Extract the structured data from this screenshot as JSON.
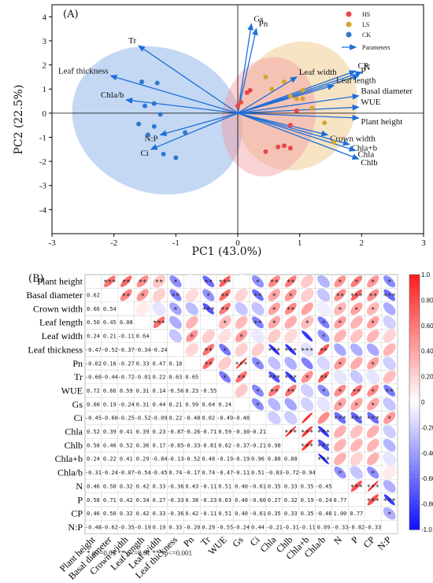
{
  "chart_data": [
    {
      "type": "scatter",
      "panel": "(A)",
      "xlabel": "PC1 (43.0%)",
      "ylabel": "PC2 (22.5%)",
      "xlim": [
        -3,
        3
      ],
      "ylim": [
        -5,
        4.5
      ],
      "xticks": [
        -3,
        -2,
        -1,
        0,
        1,
        2,
        3
      ],
      "yticks": [
        -4,
        -3,
        -2,
        -1,
        0,
        1,
        2,
        3,
        4
      ],
      "grid": false,
      "legend_position": "top-right",
      "series": [
        {
          "name": "HS",
          "color": "#e8474a",
          "points": [
            [
              0.0,
              0.3
            ],
            [
              0.05,
              0.45
            ],
            [
              0.15,
              0.85
            ],
            [
              0.2,
              0.95
            ],
            [
              0.95,
              0.1
            ],
            [
              0.85,
              -0.5
            ],
            [
              0.65,
              -1.4
            ],
            [
              0.75,
              -1.35
            ],
            [
              0.85,
              -1.45
            ],
            [
              0.45,
              -1.6
            ]
          ]
        },
        {
          "name": "LS",
          "color": "#d4a52c",
          "points": [
            [
              0.45,
              1.5
            ],
            [
              0.75,
              1.3
            ],
            [
              0.55,
              1.0
            ],
            [
              0.85,
              0.7
            ],
            [
              0.95,
              0.6
            ],
            [
              1.05,
              0.6
            ],
            [
              1.05,
              0.95
            ],
            [
              1.2,
              0.2
            ],
            [
              1.4,
              -0.4
            ],
            [
              1.55,
              -1.2
            ]
          ]
        },
        {
          "name": "CK",
          "color": "#2f77cf",
          "points": [
            [
              -1.55,
              1.3
            ],
            [
              -1.3,
              1.25
            ],
            [
              -1.5,
              0.3
            ],
            [
              -1.35,
              0.4
            ],
            [
              -1.25,
              -0.05
            ],
            [
              -1.6,
              -0.45
            ],
            [
              -1.45,
              -0.9
            ],
            [
              -0.85,
              -0.8
            ],
            [
              -1.2,
              -1.7
            ],
            [
              -1.0,
              -1.85
            ],
            [
              -1.35,
              -0.55
            ]
          ]
        }
      ],
      "ellipses": [
        {
          "group": "CK",
          "color": "#7ca8e4",
          "cx": -1.3,
          "cy": -0.3,
          "rx": 1.4,
          "ry": 3.0,
          "angle": 20
        },
        {
          "group": "LS",
          "color": "#eec47e",
          "cx": 0.95,
          "cy": 0.3,
          "rx": 0.95,
          "ry": 2.75,
          "angle": 30
        },
        {
          "group": "HS",
          "color": "#f19ca1",
          "cx": 0.5,
          "cy": -0.15,
          "rx": 0.75,
          "ry": 2.5,
          "angle": 12
        }
      ],
      "parameters_legend": "Parameters",
      "vectors": [
        {
          "name": "Gs",
          "x": 0.22,
          "y": 3.7
        },
        {
          "name": "Pn",
          "x": 0.3,
          "y": 3.5
        },
        {
          "name": "Tr",
          "x": -1.6,
          "y": 2.8
        },
        {
          "name": "Leaf thickness",
          "x": -2.05,
          "y": 1.55
        },
        {
          "name": "Chla/b",
          "x": -1.8,
          "y": 0.55
        },
        {
          "name": "N:P",
          "x": -1.25,
          "y": -0.9
        },
        {
          "name": "Ci",
          "x": -1.4,
          "y": -1.5
        },
        {
          "name": "Leaf width",
          "x": 0.95,
          "y": 1.5
        },
        {
          "name": "CP",
          "x": 1.9,
          "y": 1.75
        },
        {
          "name": "N",
          "x": 2.0,
          "y": 1.7
        },
        {
          "name": "P",
          "x": 1.95,
          "y": 1.55
        },
        {
          "name": "Leaf length",
          "x": 1.55,
          "y": 1.15
        },
        {
          "name": "Basal diameter",
          "x": 1.95,
          "y": 0.72
        },
        {
          "name": "WUE",
          "x": 1.95,
          "y": 0.25
        },
        {
          "name": "Plant height",
          "x": 1.95,
          "y": -0.2
        },
        {
          "name": "Crown width",
          "x": 1.45,
          "y": -0.9
        },
        {
          "name": "Chla+b",
          "x": 1.8,
          "y": -1.3
        },
        {
          "name": "Chla",
          "x": 1.9,
          "y": -1.55
        },
        {
          "name": "Chlb",
          "x": 1.95,
          "y": -1.9
        }
      ]
    },
    {
      "type": "heatmap",
      "panel": "(B)",
      "variables": [
        "Plant height",
        "Basal diameter",
        "Crown width",
        "Leaf length",
        "Leaf width",
        "Leaf thickness",
        "Pn",
        "Tr",
        "WUE",
        "Gs",
        "Ci",
        "Chla",
        "Chlb",
        "Chla+b",
        "Chla/b",
        "N",
        "P",
        "CP",
        "N:P"
      ],
      "column_labels": [
        "Plant height",
        "Basal diameter",
        "Crown width",
        "Leaf length",
        "Leaf width",
        "Leaf thickness",
        "Pn",
        "Tr",
        "WUE",
        "Gs",
        "Ci",
        "Chla",
        "Chlb",
        "Chla+b",
        "Chla/b",
        "N",
        "P",
        "CP",
        "N:P"
      ],
      "lower_triangle": [
        [],
        [
          0.62
        ],
        [
          0.66,
          0.54
        ],
        [
          0.5,
          0.45,
          0.08
        ],
        [
          0.24,
          0.21,
          -0.11,
          0.64
        ],
        [
          -0.47,
          -0.52,
          -0.37,
          -0.34,
          -0.24
        ],
        [
          -0.02,
          0.16,
          -0.27,
          0.33,
          0.47,
          0.18
        ],
        [
          -0.6,
          -0.44,
          -0.72,
          -0.01,
          0.22,
          0.63,
          0.65
        ],
        [
          0.72,
          0.66,
          0.59,
          0.31,
          0.14,
          -0.56,
          0.23,
          -0.55
        ],
        [
          0.0,
          0.19,
          -0.24,
          0.31,
          0.44,
          0.21,
          0.99,
          0.64,
          0.24
        ],
        [
          -0.45,
          -0.6,
          -0.25,
          -0.52,
          -0.09,
          0.22,
          -0.48,
          0.02,
          -0.49,
          -0.48
        ],
        [
          0.52,
          0.39,
          0.41,
          0.39,
          0.23,
          -0.87,
          -0.26,
          -0.71,
          0.59,
          -0.3,
          -0.21
        ],
        [
          0.58,
          0.46,
          0.52,
          0.36,
          0.17,
          -0.85,
          -0.33,
          -0.81,
          0.62,
          -0.37,
          -0.21,
          0.98
        ],
        [
          0.24,
          0.22,
          0.41,
          0.29,
          -0.84,
          -0.13,
          -0.52,
          0.48,
          -0.19,
          -0.19,
          0.96,
          0.88,
          0.88
        ],
        [
          -0.31,
          -0.24,
          -0.07,
          -0.54,
          -0.45,
          0.74,
          -0.17,
          0.74,
          -0.47,
          -0.11,
          0.51,
          -0.83,
          -0.72,
          -0.94
        ],
        [
          0.46,
          0.5,
          0.32,
          0.42,
          0.33,
          -0.36,
          0.43,
          -0.11,
          0.51,
          0.4,
          -0.61,
          0.35,
          0.33,
          0.35,
          -0.45
        ],
        [
          0.58,
          0.71,
          0.42,
          0.34,
          0.27,
          -0.33,
          0.38,
          -0.23,
          0.63,
          0.4,
          -0.66,
          0.27,
          0.32,
          0.19,
          -0.24,
          0.77
        ],
        [
          0.46,
          0.5,
          0.32,
          0.42,
          0.33,
          -0.36,
          0.42,
          -0.11,
          0.51,
          0.4,
          -0.61,
          0.35,
          0.33,
          0.35,
          -0.46,
          1.0,
          0.77
        ],
        [
          -0.48,
          -0.62,
          -0.35,
          -0.19,
          0.19,
          0.33,
          -0.2,
          0.29,
          -0.55,
          -0.24,
          0.44,
          -0.21,
          -0.31,
          -0.11,
          0.09,
          -0.33,
          -0.82,
          -0.33
        ]
      ],
      "upper_triangle_significance": [
        [
          "",
          "***",
          "**",
          "**",
          "**",
          "*",
          "",
          "**",
          "***",
          "",
          "*",
          "**",
          "**",
          "",
          "",
          "*",
          "*",
          "*",
          "*"
        ],
        [
          "",
          "",
          "**",
          "*",
          "",
          "**",
          "",
          "*",
          "**",
          "",
          "**",
          "*",
          "*",
          "",
          "",
          "**",
          "***",
          "**",
          "***"
        ],
        [
          "",
          "",
          "",
          "",
          "",
          "*",
          "",
          "***",
          "**",
          "",
          "",
          "*",
          "**",
          "",
          "",
          "*",
          "*",
          "*",
          ""
        ],
        [
          "",
          "",
          "",
          "",
          "***",
          "",
          "",
          "",
          "*",
          "",
          "**",
          "*",
          "",
          "*",
          "*",
          "*",
          "",
          "*",
          ""
        ],
        [
          "",
          "",
          "",
          "",
          "",
          "",
          "*",
          "",
          "",
          "*",
          "",
          "",
          "",
          "",
          "*",
          "",
          "",
          "",
          ""
        ],
        [
          "",
          "",
          "",
          "",
          "",
          "",
          "",
          "**",
          "*",
          "",
          "",
          "***",
          "***",
          "***",
          "**",
          "",
          "",
          "",
          ""
        ],
        [
          "",
          "",
          "",
          "",
          "",
          "",
          "",
          "**",
          "",
          "***",
          "*",
          "",
          "",
          "",
          "",
          "*",
          "",
          "*",
          ""
        ],
        [
          "",
          "",
          "",
          "",
          "",
          "",
          "",
          "",
          "*",
          "**",
          "",
          "***",
          "***",
          "*",
          "**",
          "",
          "",
          "",
          ""
        ],
        [
          "",
          "",
          "",
          "",
          "",
          "",
          "",
          "",
          "",
          "",
          "*",
          "**",
          "**",
          "",
          "*",
          "*",
          "**",
          "*",
          "**"
        ],
        [
          "",
          "",
          "",
          "",
          "",
          "",
          "",
          "",
          "",
          "",
          "*",
          "",
          "",
          "",
          "",
          "*",
          "*",
          "*",
          ""
        ],
        [
          "",
          "",
          "",
          "",
          "",
          "",
          "",
          "",
          "",
          "",
          "",
          "",
          "",
          "",
          "",
          "***",
          "***",
          "***",
          "*"
        ],
        [
          "",
          "",
          "",
          "",
          "",
          "",
          "",
          "",
          "",
          "",
          "",
          "",
          "***",
          "***",
          "***",
          "",
          "",
          "",
          ""
        ],
        [
          "",
          "",
          "",
          "",
          "",
          "",
          "",
          "",
          "",
          "",
          "",
          "",
          "",
          "***",
          "***",
          "",
          "",
          "",
          ""
        ],
        [
          "",
          "",
          "",
          "",
          "",
          "",
          "",
          "",
          "",
          "",
          "",
          "",
          "",
          "",
          "***",
          "",
          "",
          "",
          ""
        ],
        [
          "",
          "",
          "",
          "",
          "",
          "",
          "",
          "",
          "",
          "",
          "",
          "",
          "",
          "",
          "",
          "*",
          "",
          "*",
          ""
        ],
        [
          "",
          "",
          "",
          "",
          "",
          "",
          "",
          "",
          "",
          "",
          "",
          "",
          "",
          "",
          "",
          "",
          "***",
          "***",
          ""
        ],
        [
          "",
          "",
          "",
          "",
          "",
          "",
          "",
          "",
          "",
          "",
          "",
          "",
          "",
          "",
          "",
          "",
          "",
          "***",
          "***"
        ],
        [
          "",
          "",
          "",
          "",
          "",
          "",
          "",
          "",
          "",
          "",
          "",
          "",
          "",
          "",
          "",
          "",
          "",
          "",
          "*"
        ],
        [
          "",
          "",
          "",
          "",
          "",
          "",
          "",
          "",
          "",
          "",
          "",
          "",
          "",
          "",
          "",
          "",
          "",
          "",
          ""
        ]
      ],
      "colorbar_ticks": [
        "1.0",
        "0.80",
        "0.60",
        "0.40",
        "0.20",
        "0",
        "-0.20",
        "-0.40",
        "-0.60",
        "-0.80",
        "-1.0"
      ],
      "vlim": [
        -1,
        1
      ],
      "note": "*  p<=0.05    **  p<=0.01    ***  p<=0.001"
    }
  ]
}
